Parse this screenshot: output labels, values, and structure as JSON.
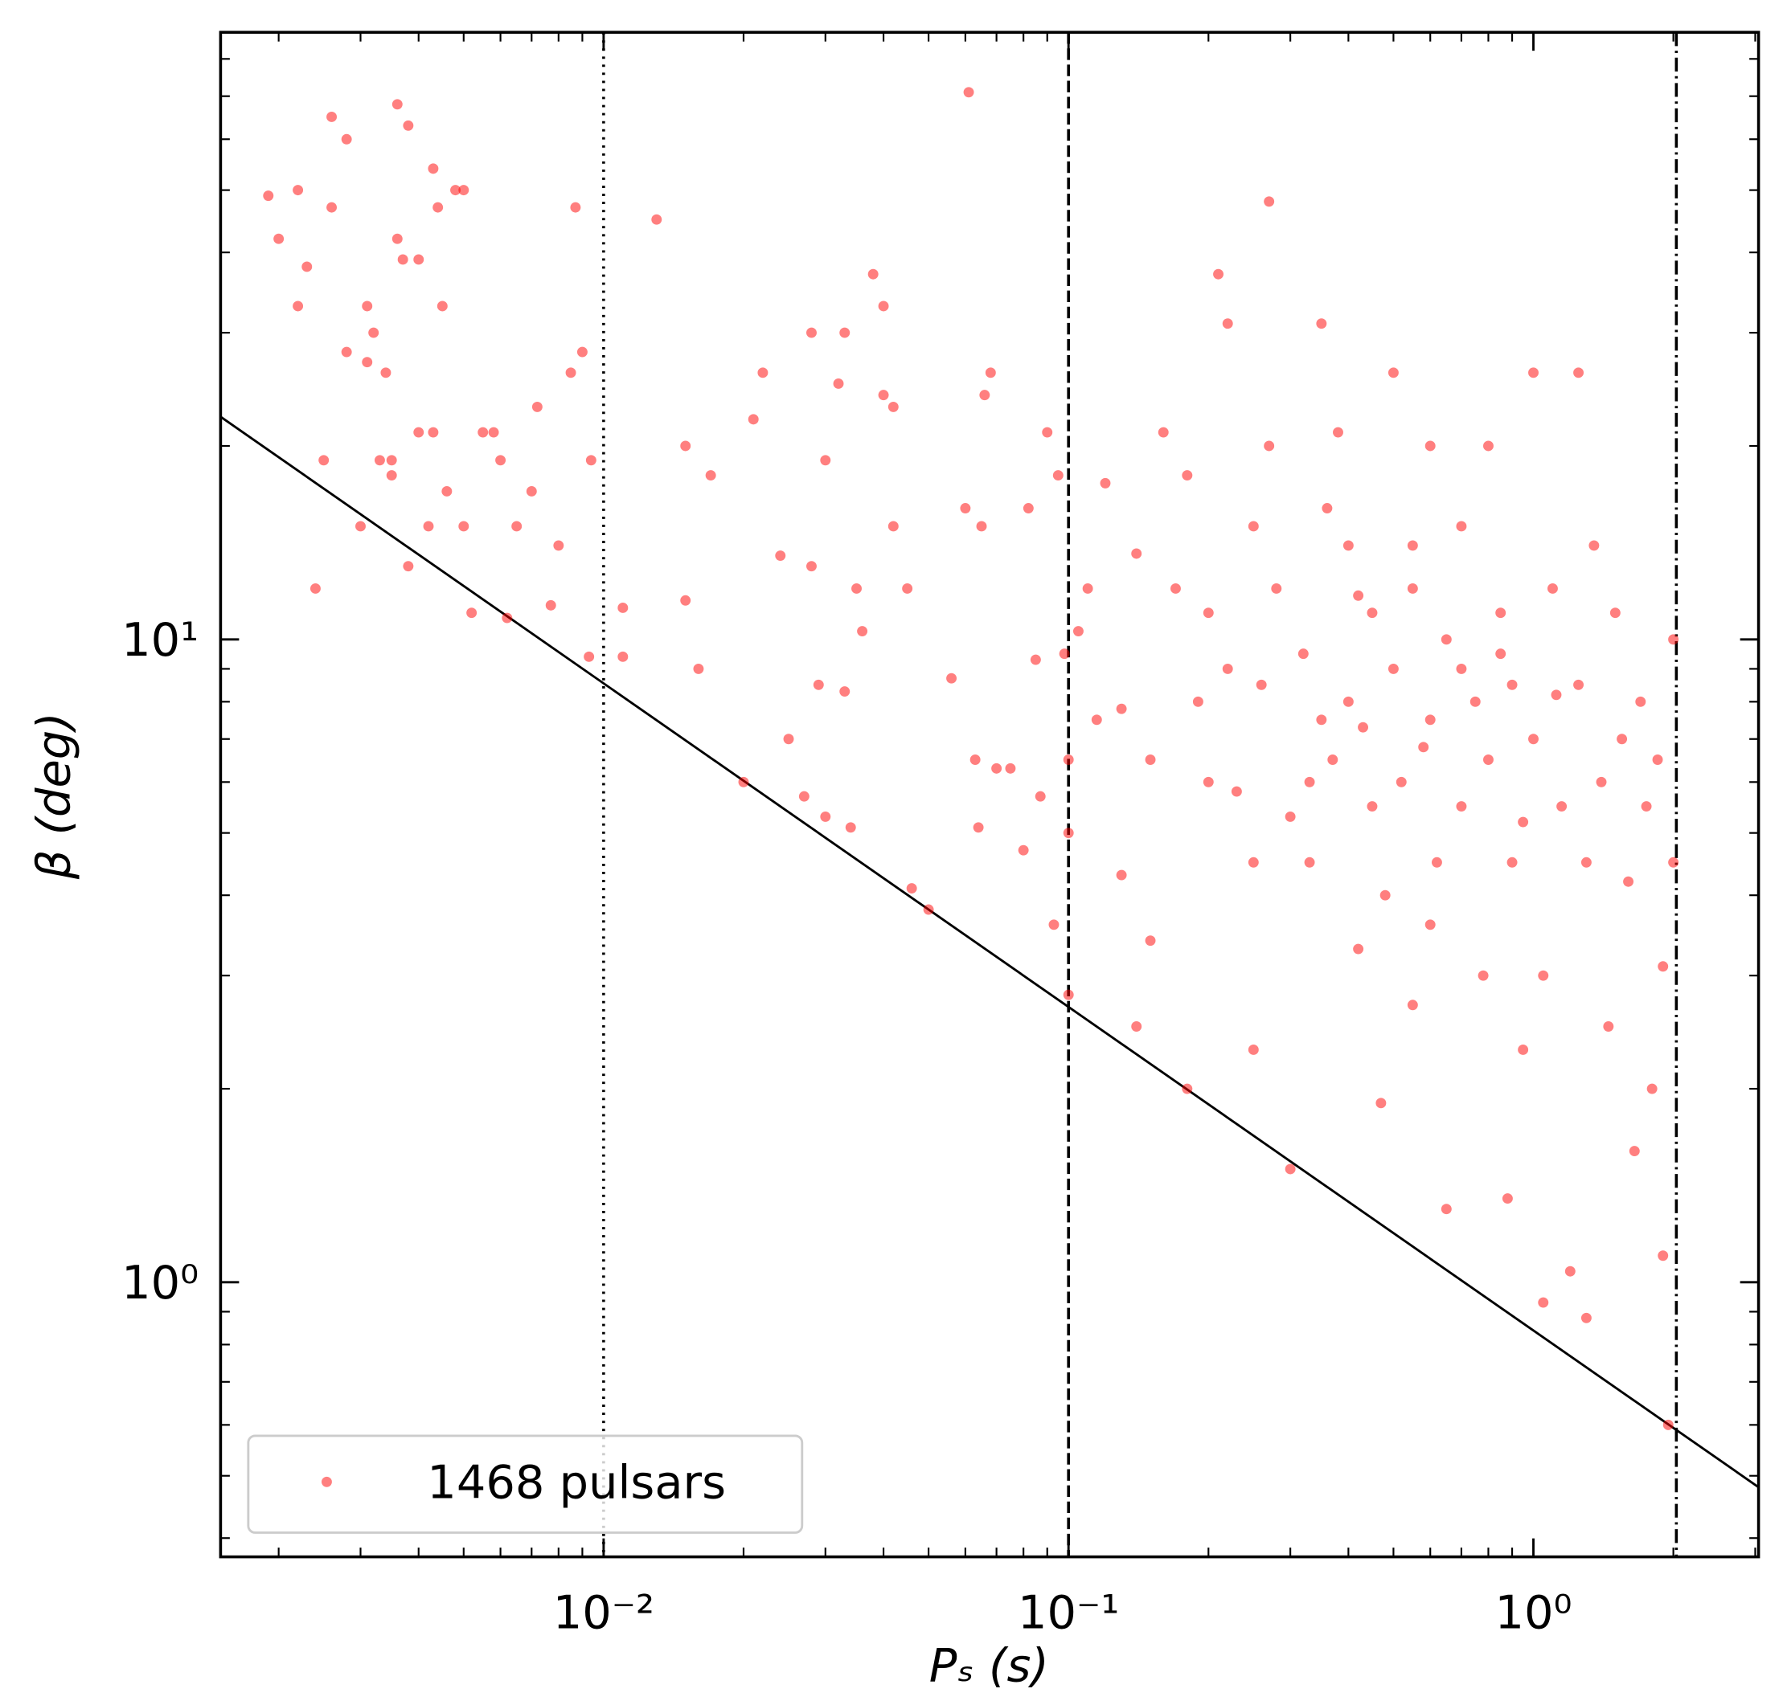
{
  "chart_data": {
    "type": "scatter",
    "xlabel": "Pₛ (s)",
    "ylabel": "β (deg)",
    "xscale": "log",
    "yscale": "log",
    "xlim": [
      0.0015,
      3.05
    ],
    "ylim": [
      0.374,
      88
    ],
    "xticks": [
      {
        "value": 0.01,
        "label": "10⁻²"
      },
      {
        "value": 0.1,
        "label": "10⁻¹"
      },
      {
        "value": 1,
        "label": "10⁰"
      }
    ],
    "yticks": [
      {
        "value": 1,
        "label": "10⁰"
      },
      {
        "value": 10,
        "label": "10¹"
      }
    ],
    "xminor": [
      0.002,
      0.003,
      0.004,
      0.005,
      0.006,
      0.007,
      0.008,
      0.009,
      0.02,
      0.03,
      0.04,
      0.05,
      0.06,
      0.07,
      0.08,
      0.09,
      0.2,
      0.3,
      0.4,
      0.5,
      0.6,
      0.7,
      0.8,
      0.9,
      2,
      3
    ],
    "yminor": [
      0.4,
      0.5,
      0.6,
      0.7,
      0.8,
      0.9,
      2,
      3,
      4,
      5,
      6,
      7,
      8,
      9,
      20,
      30,
      40,
      50,
      60,
      70,
      80
    ],
    "legend": "lower left",
    "alpha": 0.5,
    "series": [
      {
        "name": "1468 pulsars",
        "color": "#ff0000",
        "x": [
          0.0019,
          0.002,
          0.0022,
          0.0022,
          0.0023,
          0.0026,
          0.0026,
          0.0028,
          0.0031,
          0.0031,
          0.0032,
          0.0034,
          0.0035,
          0.0036,
          0.0036,
          0.0037,
          0.0038,
          0.004,
          0.0043,
          0.0044,
          0.0045,
          0.0048,
          0.005,
          0.0043,
          0.0046,
          0.005,
          0.0055,
          0.0058,
          0.006,
          0.0065,
          0.007,
          0.0072,
          0.008,
          0.0085,
          0.009,
          0.0087,
          0.0094,
          0.0025,
          0.0024,
          0.003,
          0.0033,
          0.0038,
          0.0042,
          0.0052,
          0.0062,
          0.0077,
          0.0093,
          0.0035,
          0.004,
          0.0028,
          0.011,
          0.011,
          0.013,
          0.015,
          0.015,
          0.016,
          0.017,
          0.02,
          0.021,
          0.022,
          0.024,
          0.025,
          0.027,
          0.028,
          0.028,
          0.029,
          0.03,
          0.03,
          0.032,
          0.033,
          0.033,
          0.034,
          0.035,
          0.036,
          0.038,
          0.04,
          0.04,
          0.042,
          0.042,
          0.045,
          0.046,
          0.05,
          0.056,
          0.06,
          0.061,
          0.063,
          0.064,
          0.065,
          0.066,
          0.068,
          0.07,
          0.075,
          0.08,
          0.082,
          0.085,
          0.087,
          0.09,
          0.095,
          0.098,
          0.093,
          0.1,
          0.1,
          0.1,
          0.105,
          0.11,
          0.115,
          0.12,
          0.13,
          0.13,
          0.14,
          0.14,
          0.15,
          0.15,
          0.16,
          0.17,
          0.18,
          0.18,
          0.19,
          0.2,
          0.2,
          0.21,
          0.22,
          0.22,
          0.23,
          0.25,
          0.25,
          0.26,
          0.27,
          0.27,
          0.28,
          0.3,
          0.3,
          0.32,
          0.33,
          0.35,
          0.35,
          0.37,
          0.38,
          0.4,
          0.4,
          0.42,
          0.45,
          0.45,
          0.47,
          0.5,
          0.5,
          0.52,
          0.55,
          0.55,
          0.6,
          0.6,
          0.62,
          0.65,
          0.65,
          0.7,
          0.7,
          0.75,
          0.78,
          0.8,
          0.8,
          0.85,
          0.88,
          0.9,
          0.9,
          0.95,
          1.0,
          1.0,
          1.05,
          1.05,
          1.1,
          1.15,
          1.2,
          1.25,
          1.25,
          1.3,
          1.3,
          1.35,
          1.4,
          1.45,
          1.5,
          1.55,
          1.6,
          1.65,
          1.7,
          1.75,
          1.8,
          1.85,
          1.9,
          1.95,
          2.0,
          2.0,
          1.9,
          0.36,
          0.55,
          0.7,
          0.43,
          0.58,
          0.33,
          0.85,
          1.12,
          0.48,
          0.6,
          0.95,
          0.25,
          0.42
        ],
        "values": [
          49,
          42,
          50,
          33,
          38,
          65,
          47,
          60,
          33,
          27,
          30,
          26,
          19,
          68,
          42,
          39,
          63,
          39,
          54,
          47,
          33,
          50,
          50,
          21,
          17,
          15,
          21,
          21,
          19,
          15,
          17,
          23,
          14,
          26,
          28,
          47,
          19,
          19,
          12,
          15,
          19,
          13,
          15,
          11,
          10.8,
          11.3,
          9.4,
          18,
          21,
          28,
          9.4,
          11.2,
          45,
          20,
          11.5,
          9,
          18,
          6,
          22,
          26,
          13.5,
          7,
          5.7,
          30,
          13,
          8.5,
          19,
          5.3,
          25,
          30,
          8.3,
          5.1,
          12,
          10.3,
          37,
          33,
          24,
          23,
          15,
          12,
          4.1,
          3.8,
          8.7,
          16,
          71,
          6.5,
          5.1,
          15,
          24,
          26,
          6.3,
          6.3,
          4.7,
          16,
          9.3,
          5.7,
          21,
          18,
          9.5,
          3.6,
          6.5,
          5,
          2.8,
          10.3,
          12,
          7.5,
          17.5,
          7.8,
          4.3,
          2.5,
          13.6,
          6.5,
          3.4,
          21,
          12,
          18,
          2,
          8,
          11,
          6,
          37,
          31,
          9,
          5.8,
          15,
          2.3,
          8.5,
          20,
          48,
          12,
          5.3,
          1.5,
          9.5,
          4.5,
          31,
          7.5,
          6.5,
          21,
          14,
          8,
          3.3,
          11,
          5.5,
          1.9,
          26,
          9,
          6,
          2.7,
          14,
          20,
          7.5,
          4.5,
          10,
          1.3,
          5.5,
          15,
          8,
          3,
          20,
          6.5,
          11,
          1.35,
          8.5,
          4.5,
          2.3,
          26,
          7,
          3,
          0.93,
          12,
          5.5,
          1.04,
          26,
          8.5,
          4.5,
          0.88,
          14,
          6,
          2.5,
          11,
          7,
          4.2,
          1.6,
          8,
          5.5,
          2,
          6.5,
          1.1,
          0.6,
          4.5,
          10,
          3.1,
          16,
          12,
          9,
          7.3,
          6.8,
          6,
          9.5,
          8.2,
          4,
          3.6,
          5.2,
          4.5,
          11.7
        ]
      }
    ],
    "lines": [
      {
        "color": "#000000",
        "x": [
          0.0015,
          3.05
        ],
        "values": [
          22.2,
          0.48
        ]
      }
    ],
    "vlines": [
      {
        "x": 0.01,
        "dash": "dotted",
        "color": "#000000"
      },
      {
        "x": 0.1,
        "dash": "dashed",
        "color": "#000000"
      },
      {
        "x": 2.03,
        "dash": "dashdot",
        "color": "#000000"
      }
    ]
  }
}
